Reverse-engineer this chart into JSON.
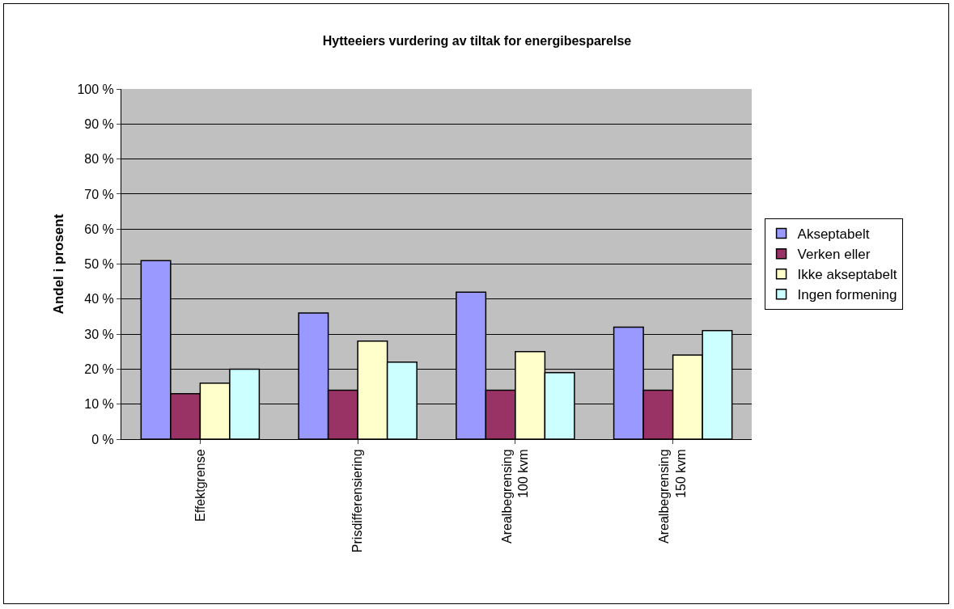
{
  "chart_data": {
    "type": "bar",
    "title": "Hytteeiers vurdering av tiltak for energibesparelse",
    "ylabel": "Andel i prosent",
    "categories": [
      "Effektgrense",
      "Prisdifferensiering",
      "Arealbegrensing\n100 kvm",
      "Arealbegrensing\n150 kvm"
    ],
    "series": [
      {
        "name": "Akseptabelt",
        "color": "#9999ff",
        "values": [
          51,
          36,
          42,
          32
        ]
      },
      {
        "name": "Verken eller",
        "color": "#993366",
        "values": [
          13,
          14,
          14,
          14
        ]
      },
      {
        "name": "Ikke akseptabelt",
        "color": "#ffffcc",
        "values": [
          16,
          28,
          25,
          24
        ]
      },
      {
        "name": "Ingen formening",
        "color": "#ccffff",
        "values": [
          20,
          22,
          19,
          31
        ]
      }
    ],
    "ylim": [
      0,
      100
    ],
    "yticks": [
      {
        "value": 0,
        "label": "0 %"
      },
      {
        "value": 10,
        "label": "10 %"
      },
      {
        "value": 20,
        "label": "20 %"
      },
      {
        "value": 30,
        "label": "30 %"
      },
      {
        "value": 40,
        "label": "40 %"
      },
      {
        "value": 50,
        "label": "50 %"
      },
      {
        "value": 60,
        "label": "60 %"
      },
      {
        "value": 70,
        "label": "70 %"
      },
      {
        "value": 80,
        "label": "80 %"
      },
      {
        "value": 90,
        "label": "90 %"
      },
      {
        "value": 100,
        "label": "100 %"
      }
    ],
    "grid": "y",
    "legend": "right"
  }
}
